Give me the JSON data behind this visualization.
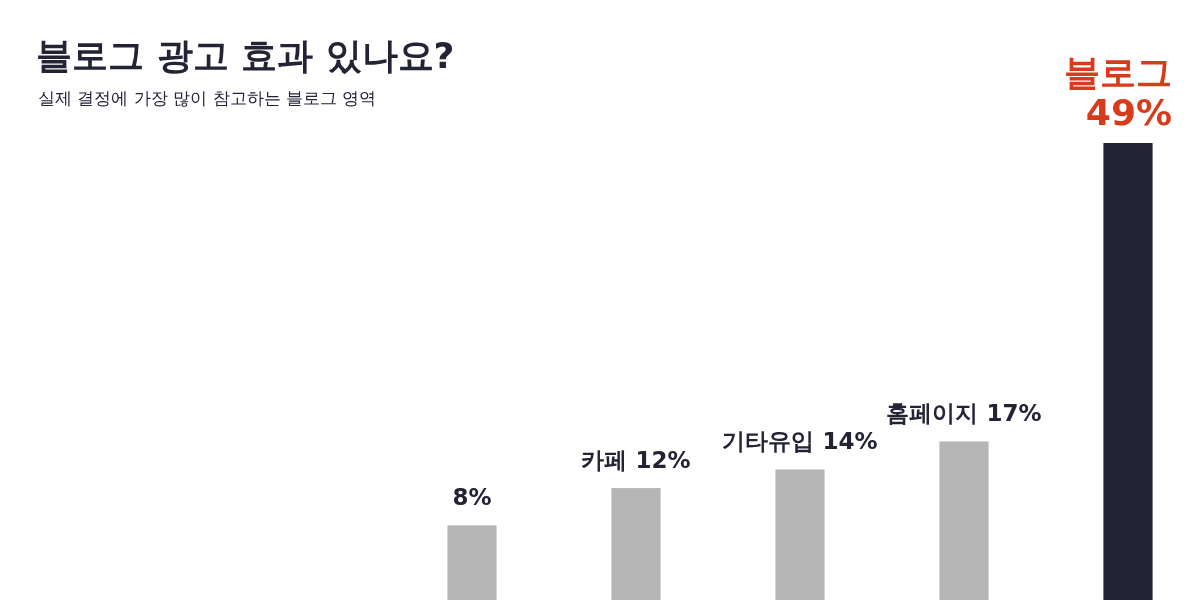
{
  "chart_data": {
    "type": "bar",
    "title": "블로그 광고 효과 있나요?",
    "subtitle": "실제 결정에 가장 많이 참고하는 블로그 영역",
    "categories": [
      null,
      "카페",
      "기타유입",
      "홈페이지",
      "블로그"
    ],
    "values": [
      8,
      12,
      14,
      17,
      49
    ],
    "colors": [
      "#b5b5b5",
      "#b5b5b5",
      "#b5b5b5",
      "#b5b5b5",
      "#222334"
    ],
    "value_labels": [
      "8%",
      "12%",
      "14%",
      "17%",
      "49%"
    ],
    "relative": false
  }
}
